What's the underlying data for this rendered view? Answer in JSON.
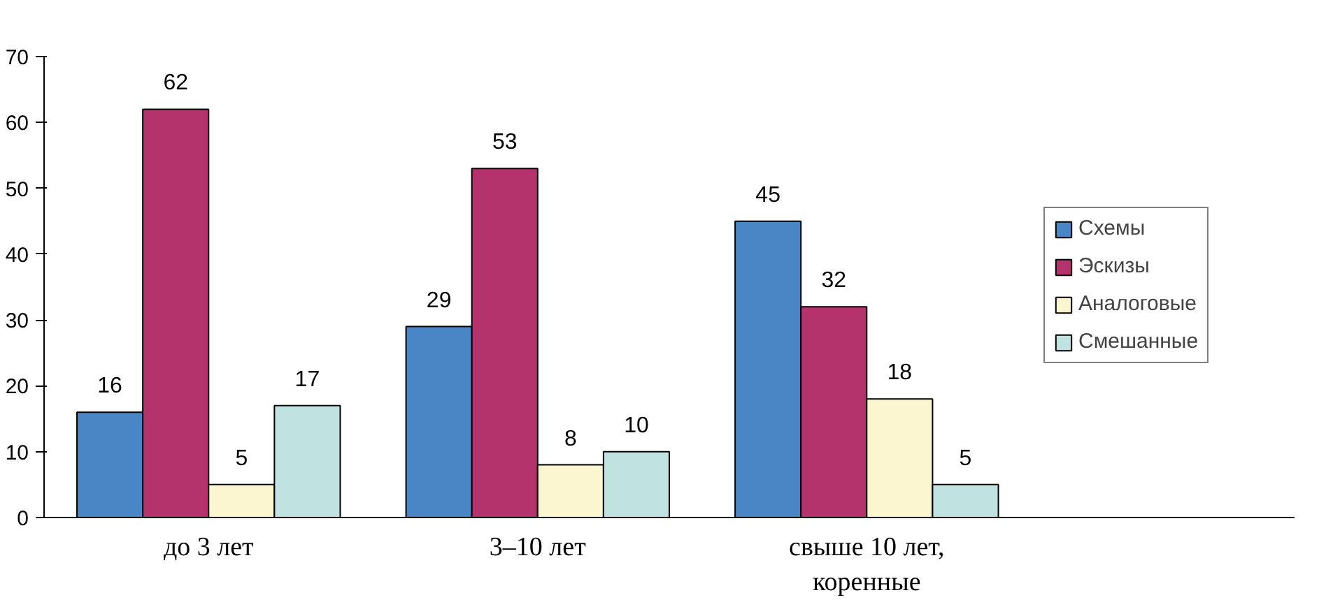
{
  "chart_data": {
    "type": "bar",
    "categories": [
      "до 3 лет",
      "3–10 лет",
      "свыше 10 лет,\nкоренные"
    ],
    "series": [
      {
        "name": "Схемы",
        "color": "#4a86c5",
        "values": [
          16,
          29,
          45
        ]
      },
      {
        "name": "Эскизы",
        "color": "#b5336d",
        "values": [
          62,
          53,
          32
        ]
      },
      {
        "name": "Аналоговые",
        "color": "#fbf6cf",
        "values": [
          5,
          8,
          18
        ]
      },
      {
        "name": "Смешанные",
        "color": "#c0e2e0",
        "values": [
          17,
          10,
          5
        ]
      }
    ],
    "ylim": [
      0,
      70
    ],
    "yticks": [
      0,
      10,
      20,
      30,
      40,
      50,
      60,
      70
    ],
    "data_labels": true,
    "grid": false,
    "legend": "right"
  }
}
